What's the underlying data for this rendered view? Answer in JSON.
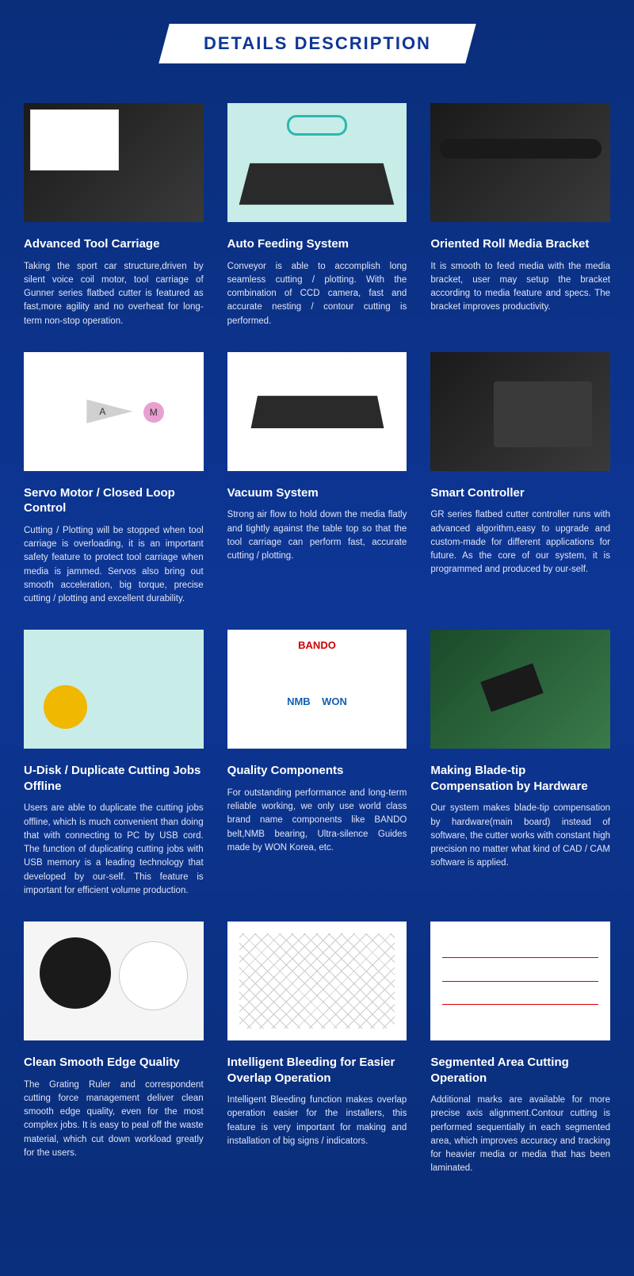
{
  "header": {
    "title": "DETAILS DESCRIPTION"
  },
  "colors": {
    "bg_gradient_top": "#0a2e7a",
    "bg_gradient_mid": "#0d3696",
    "banner_bg": "#ffffff",
    "banner_text": "#0d3696",
    "card_title": "#ffffff",
    "card_desc": "#e0e6f5"
  },
  "cards": [
    {
      "title": "Advanced Tool Carriage",
      "desc": "Taking the sport car structure,driven by silent voice coil motor, tool carriage of Gunner series flatbed cutter is featured as fast,more agility and no overheat for long-term non-stop operation.",
      "image_class": "img-dark img-carriage"
    },
    {
      "title": "Auto Feeding System",
      "desc": "Conveyor is able to accomplish long seamless cutting / plotting. With the combination of CCD camera, fast and accurate nesting / contour cutting is performed.",
      "image_class": "img-teal img-conveyor"
    },
    {
      "title": "Oriented Roll Media Bracket",
      "desc": "It is smooth to feed media with the media bracket, user may setup the bracket according to media feature and specs. The bracket improves productivity.",
      "image_class": "img-dark img-roll"
    },
    {
      "title": "Servo Motor / Closed Loop Control",
      "desc": "Cutting / Plotting will be stopped when tool carriage is overloading, it is an important safety feature to protect tool carriage when media is jammed. Servos also bring out smooth acceleration, big torque, precise cutting / plotting and excellent durability.",
      "image_class": "img-diagram img-servo"
    },
    {
      "title": "Vacuum System",
      "desc": "Strong air flow to hold down the media flatly and tightly against the table top so that the tool carriage can perform fast, accurate cutting / plotting.",
      "image_class": "img-light img-vacuum"
    },
    {
      "title": "Smart Controller",
      "desc": "GR series flatbed cutter controller runs with advanced algorithm,easy to upgrade and custom-made for different applications for future. As the core of our system, it is programmed and produced by our-self.",
      "image_class": "img-dark img-smart"
    },
    {
      "title": "U-Disk / Duplicate Cutting Jobs Offline",
      "desc": "Users are able to duplicate the cutting jobs offline, which is much convenient than doing that with connecting to PC by USB cord. The function of duplicating cutting jobs with USB memory is a leading technology that developed by our-self. This feature is important for efficient volume production.",
      "image_class": "img-teal img-udisk"
    },
    {
      "title": "Quality Components",
      "desc": "For outstanding performance and long-term reliable working, we only use world class brand name components like BANDO belt,NMB bearing, Ultra-silence Guides made by WON Korea, etc.",
      "image_class": "img-light img-brands"
    },
    {
      "title": "Making Blade-tip Compensation by Hardware",
      "desc": "Our system makes blade-tip compensation by hardware(main board) instead of software, the cutter works with constant high precision no matter what kind of CAD / CAM software is applied.",
      "image_class": "img-pcb"
    },
    {
      "title": "Clean Smooth Edge Quality",
      "desc": "The Grating Ruler and correspondent cutting force management deliver clean smooth edge quality, even for the most complex jobs. It is easy to peal off the waste material, which cut down workload greatly for the users.",
      "image_class": "img-stickers"
    },
    {
      "title": "Intelligent Bleeding for Easier Overlap Operation",
      "desc": "Intelligent Bleeding function makes overlap operation easier for the installers, this feature is very important for making and installation of big signs / indicators.",
      "image_class": "img-grid"
    },
    {
      "title": "Segmented Area Cutting Operation",
      "desc": "Additional marks are available for more precise axis alignment.Contour cutting is performed sequentially in each segmented area, which improves accuracy and tracking for heavier media or media that has been laminated.",
      "image_class": "img-seg"
    }
  ]
}
